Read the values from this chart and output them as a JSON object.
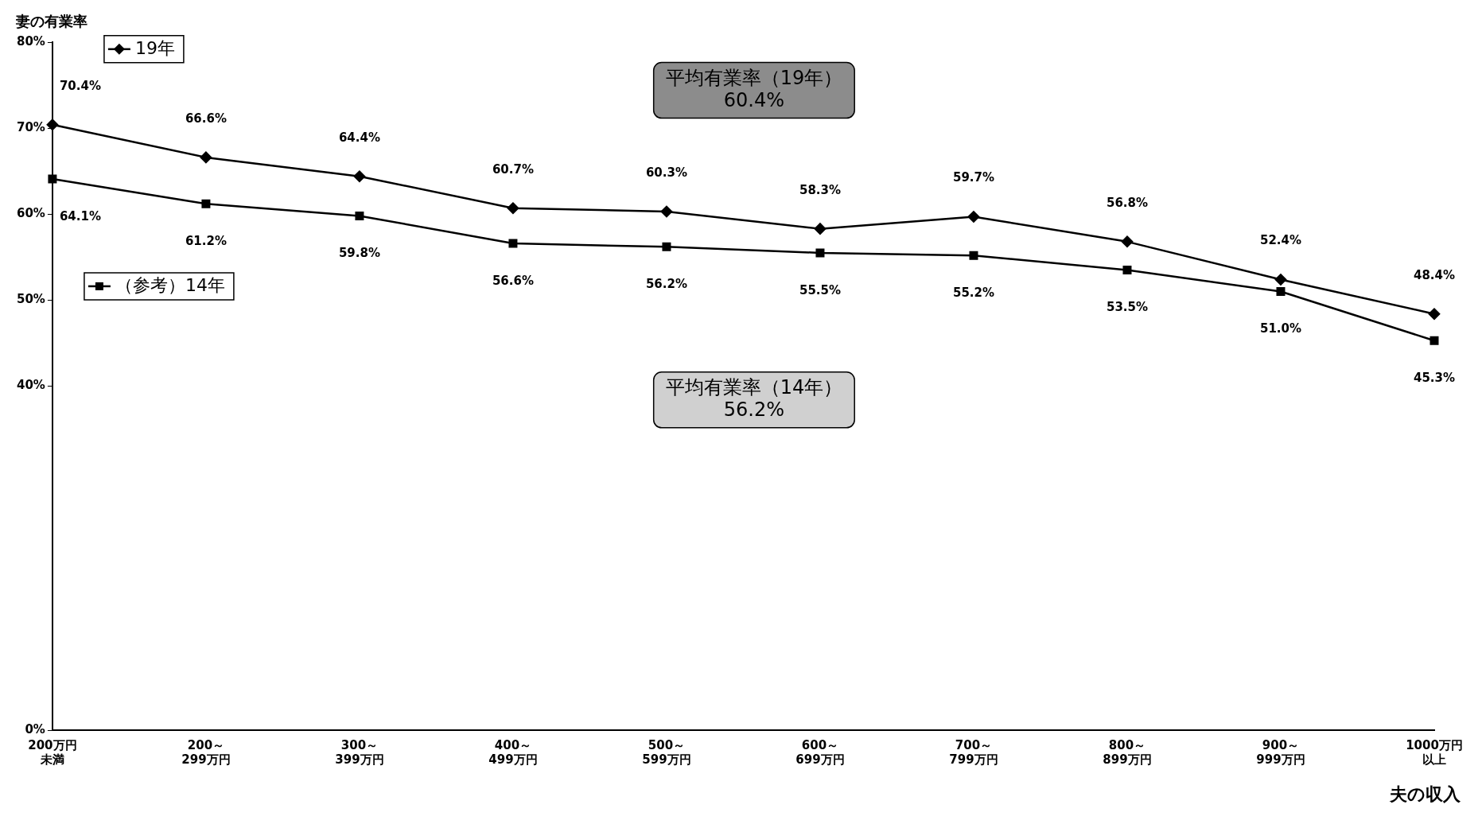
{
  "chart_data": {
    "type": "line",
    "ylabel": "妻の有業率",
    "xlabel": "夫の収入",
    "categories": [
      "200万円未満",
      "200～299万円",
      "300～399万円",
      "400～499万円",
      "500～599万円",
      "600～699万円",
      "700～799万円",
      "800～899万円",
      "900～999万円",
      "1000万円以上"
    ],
    "series": [
      {
        "name": "19年",
        "color": "#000000",
        "marker": "diamond",
        "values": [
          70.4,
          66.6,
          64.4,
          60.7,
          60.3,
          58.3,
          59.7,
          56.8,
          52.4,
          48.4
        ],
        "value_labels": [
          "70.4%",
          "66.6%",
          "64.4%",
          "60.7%",
          "60.3%",
          "58.3%",
          "59.7%",
          "56.8%",
          "52.4%",
          "48.4%"
        ]
      },
      {
        "name": "（参考）14年",
        "color": "#000000",
        "marker": "square",
        "values": [
          64.1,
          61.2,
          59.8,
          56.6,
          56.2,
          55.5,
          55.2,
          53.5,
          51.0,
          45.3
        ],
        "value_labels": [
          "64.1%",
          "61.2%",
          "59.8%",
          "56.6%",
          "56.2%",
          "55.5%",
          "55.2%",
          "53.5%",
          "51.0%",
          "45.3%"
        ]
      }
    ],
    "ylim": [
      0,
      80
    ],
    "yticks": [
      {
        "value": 0,
        "label": "0%"
      },
      {
        "value": 40,
        "label": "40%"
      },
      {
        "value": 50,
        "label": "50%"
      },
      {
        "value": 60,
        "label": "60%"
      },
      {
        "value": 70,
        "label": "70%"
      },
      {
        "value": 80,
        "label": "80%"
      }
    ],
    "grid": false,
    "legend": "top left",
    "annotations": [
      "平均有業率（19年）\n60.4%",
      "平均有業率（14年）\n56.2%"
    ]
  }
}
